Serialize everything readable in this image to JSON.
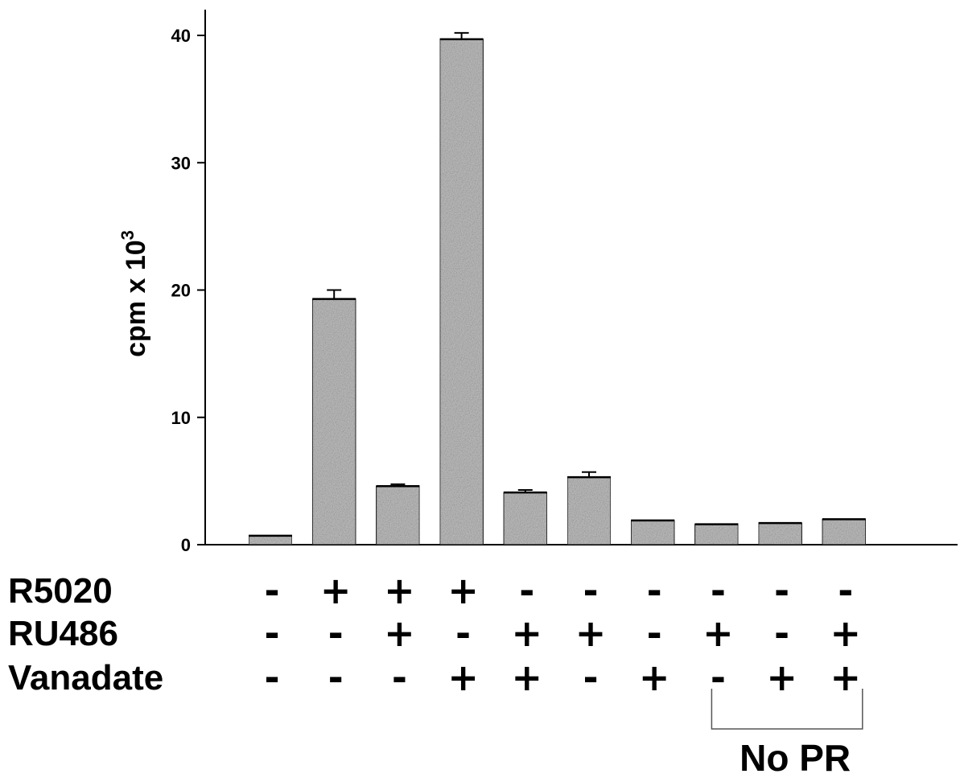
{
  "chart_data": {
    "type": "bar",
    "ylabel": "cpm x 10",
    "ylabel_superscript": "3",
    "ylim": [
      0,
      40
    ],
    "yticks": [
      "0",
      "10",
      "20",
      "30",
      "40"
    ],
    "bar_color": "#c4c4c4",
    "values": [
      0.7,
      19.3,
      4.6,
      39.7,
      4.1,
      5.3,
      1.9,
      1.6,
      1.7,
      2.0
    ],
    "errors": [
      0,
      0.7,
      0.15,
      0.5,
      0.2,
      0.4,
      0,
      0,
      0,
      0
    ],
    "treatments": [
      {
        "label": "R5020",
        "signs": [
          "-",
          "+",
          "+",
          "+",
          "-",
          "-",
          "-",
          "-",
          "-",
          "-"
        ]
      },
      {
        "label": "RU486",
        "signs": [
          "-",
          "-",
          "+",
          "-",
          "+",
          "+",
          "-",
          "+",
          "-",
          "+"
        ]
      },
      {
        "label": "Vanadate",
        "signs": [
          "-",
          "-",
          "-",
          "+",
          "+",
          "-",
          "+",
          "-",
          "+",
          "+"
        ]
      }
    ],
    "group_annotation": {
      "label": "No PR",
      "from_index": 7,
      "to_index": 9
    }
  }
}
